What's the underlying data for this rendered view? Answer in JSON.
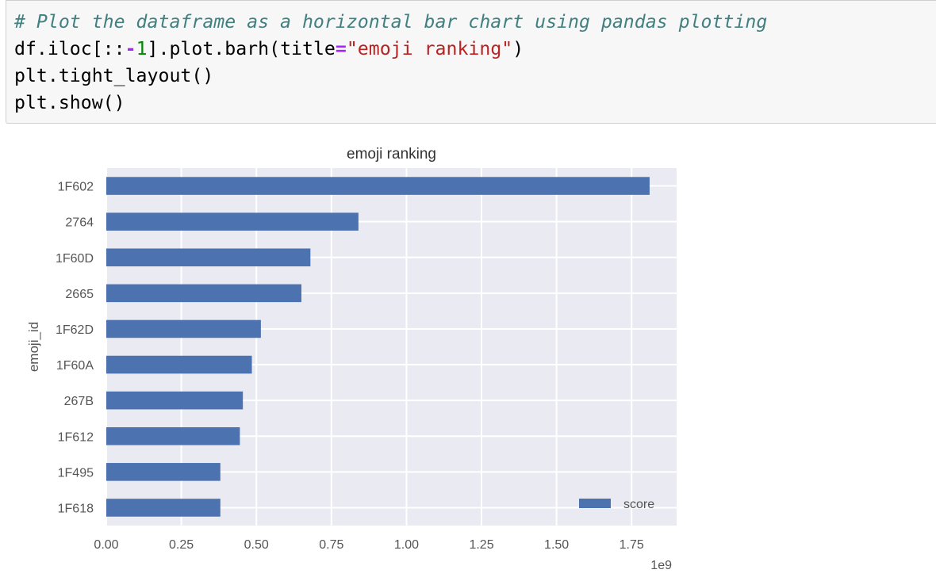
{
  "code": {
    "lines": [
      [
        {
          "t": "comment",
          "v": "# Plot the dataframe as a horizontal bar chart using pandas plotting"
        }
      ],
      [
        {
          "t": "plain",
          "v": "df.iloc[::"
        },
        {
          "t": "op",
          "v": "-"
        },
        {
          "t": "num",
          "v": "1"
        },
        {
          "t": "plain",
          "v": "].plot.barh(title"
        },
        {
          "t": "op",
          "v": "="
        },
        {
          "t": "str",
          "v": "\"emoji ranking\""
        },
        {
          "t": "plain",
          "v": ")"
        }
      ],
      [
        {
          "t": "plain",
          "v": "plt.tight_layout()"
        }
      ],
      [
        {
          "t": "plain",
          "v": "plt.show()"
        }
      ]
    ]
  },
  "chart_data": {
    "type": "bar",
    "orientation": "horizontal",
    "title": "emoji ranking",
    "ylabel": "emoji_id",
    "xlabel": "",
    "x_offset_label": "1e9",
    "categories": [
      "1F602",
      "2764",
      "1F60D",
      "2665",
      "1F62D",
      "1F60A",
      "267B",
      "1F612",
      "1F495",
      "1F618"
    ],
    "series": [
      {
        "name": "score",
        "values": [
          1.81,
          0.84,
          0.68,
          0.65,
          0.515,
          0.485,
          0.455,
          0.445,
          0.38,
          0.38
        ],
        "color": "#4c72b0"
      }
    ],
    "xlim": [
      0,
      1.9
    ],
    "xticks": [
      0.0,
      0.25,
      0.5,
      0.75,
      1.0,
      1.25,
      1.5,
      1.75
    ],
    "xtick_labels": [
      "0.00",
      "0.25",
      "0.50",
      "0.75",
      "1.00",
      "1.25",
      "1.50",
      "1.75"
    ],
    "legend": {
      "position": "lower-right",
      "entries": [
        "score"
      ]
    },
    "grid": true,
    "style": "seaborn-darkgrid",
    "colors": {
      "axes_bg": "#eaeaf2",
      "grid": "#ffffff",
      "bar": "#4c72b0",
      "text": "#555555"
    }
  }
}
